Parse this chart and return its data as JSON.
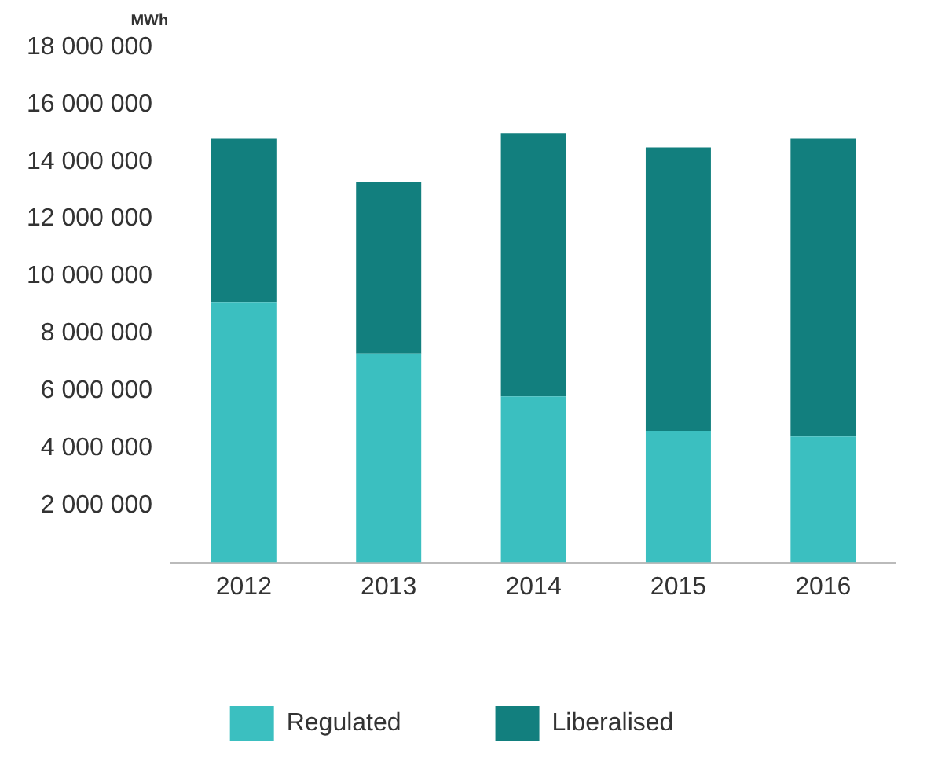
{
  "chart_data": {
    "type": "bar",
    "stacked": true,
    "ylabel": "MWh",
    "categories": [
      "2012",
      "2013",
      "2014",
      "2015",
      "2016"
    ],
    "series": [
      {
        "name": "Regulated",
        "color": "#3bbfc0",
        "values": [
          9100000,
          7300000,
          5800000,
          4600000,
          4400000
        ]
      },
      {
        "name": "Liberalised",
        "color": "#127f7e",
        "values": [
          5700000,
          6000000,
          9200000,
          9900000,
          10400000
        ]
      }
    ],
    "ylim": [
      0,
      18000000
    ],
    "yticks": [
      {
        "value": 2000000,
        "label": "2 000 000"
      },
      {
        "value": 4000000,
        "label": "4 000 000"
      },
      {
        "value": 6000000,
        "label": "6 000 000"
      },
      {
        "value": 8000000,
        "label": "8 000 000"
      },
      {
        "value": 10000000,
        "label": "10 000 000"
      },
      {
        "value": 12000000,
        "label": "12 000 000"
      },
      {
        "value": 14000000,
        "label": "14 000 000"
      },
      {
        "value": 16000000,
        "label": "16 000 000"
      },
      {
        "value": 18000000,
        "label": "18 000 000"
      }
    ],
    "grid": false,
    "legend": "bottom"
  }
}
